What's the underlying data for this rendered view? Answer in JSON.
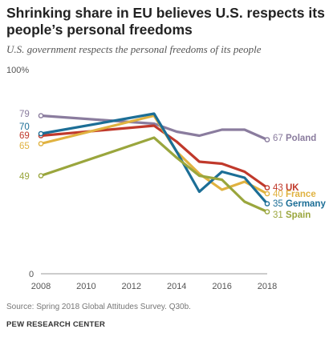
{
  "header": {
    "title": "Shrinking share in EU believes U.S. respects its people’s personal freedoms",
    "subtitle": "U.S. government respects the personal freedoms of its people"
  },
  "chart_data": {
    "type": "line",
    "ylim": [
      0,
      100
    ],
    "xlim": [
      2008,
      2018
    ],
    "y_top_label": "100%",
    "y_bottom_label": "0",
    "x_ticks": [
      "2008",
      "2010",
      "2012",
      "2014",
      "2016",
      "2018"
    ],
    "grid": false,
    "series": [
      {
        "name": "Poland",
        "color": "#8a7c9e",
        "start_label": "79",
        "end_label": "67",
        "points": [
          [
            2008,
            79
          ],
          [
            2013,
            75
          ],
          [
            2014,
            71
          ],
          [
            2015,
            69
          ],
          [
            2016,
            72
          ],
          [
            2017,
            72
          ],
          [
            2018,
            67
          ]
        ]
      },
      {
        "name": "UK",
        "color": "#c0392b",
        "start_label": "69",
        "end_label": "43",
        "points": [
          [
            2008,
            69
          ],
          [
            2013,
            74
          ],
          [
            2014,
            66
          ],
          [
            2015,
            56
          ],
          [
            2016,
            55
          ],
          [
            2017,
            51
          ],
          [
            2018,
            43
          ]
        ]
      },
      {
        "name": "France",
        "color": "#e0b240",
        "start_label": "65",
        "end_label": "40",
        "points": [
          [
            2008,
            65
          ],
          [
            2013,
            79
          ],
          [
            2014,
            61
          ],
          [
            2015,
            50
          ],
          [
            2016,
            42
          ],
          [
            2017,
            46
          ],
          [
            2018,
            40
          ]
        ]
      },
      {
        "name": "Germany",
        "color": "#1c6e96",
        "start_label": "70",
        "end_label": "35",
        "points": [
          [
            2008,
            70
          ],
          [
            2013,
            80
          ],
          [
            2014,
            61
          ],
          [
            2015,
            41
          ],
          [
            2016,
            51
          ],
          [
            2017,
            48
          ],
          [
            2018,
            35
          ]
        ]
      },
      {
        "name": "Spain",
        "color": "#9aa63d",
        "start_label": "49",
        "end_label": "31",
        "points": [
          [
            2008,
            49
          ],
          [
            2013,
            68
          ],
          [
            2014,
            58
          ],
          [
            2015,
            49
          ],
          [
            2016,
            47
          ],
          [
            2017,
            36
          ],
          [
            2018,
            31
          ]
        ]
      }
    ]
  },
  "footer": {
    "note": "Source: Spring 2018 Global Attitudes Survey. Q30b.",
    "credit": "PEW RESEARCH CENTER"
  }
}
